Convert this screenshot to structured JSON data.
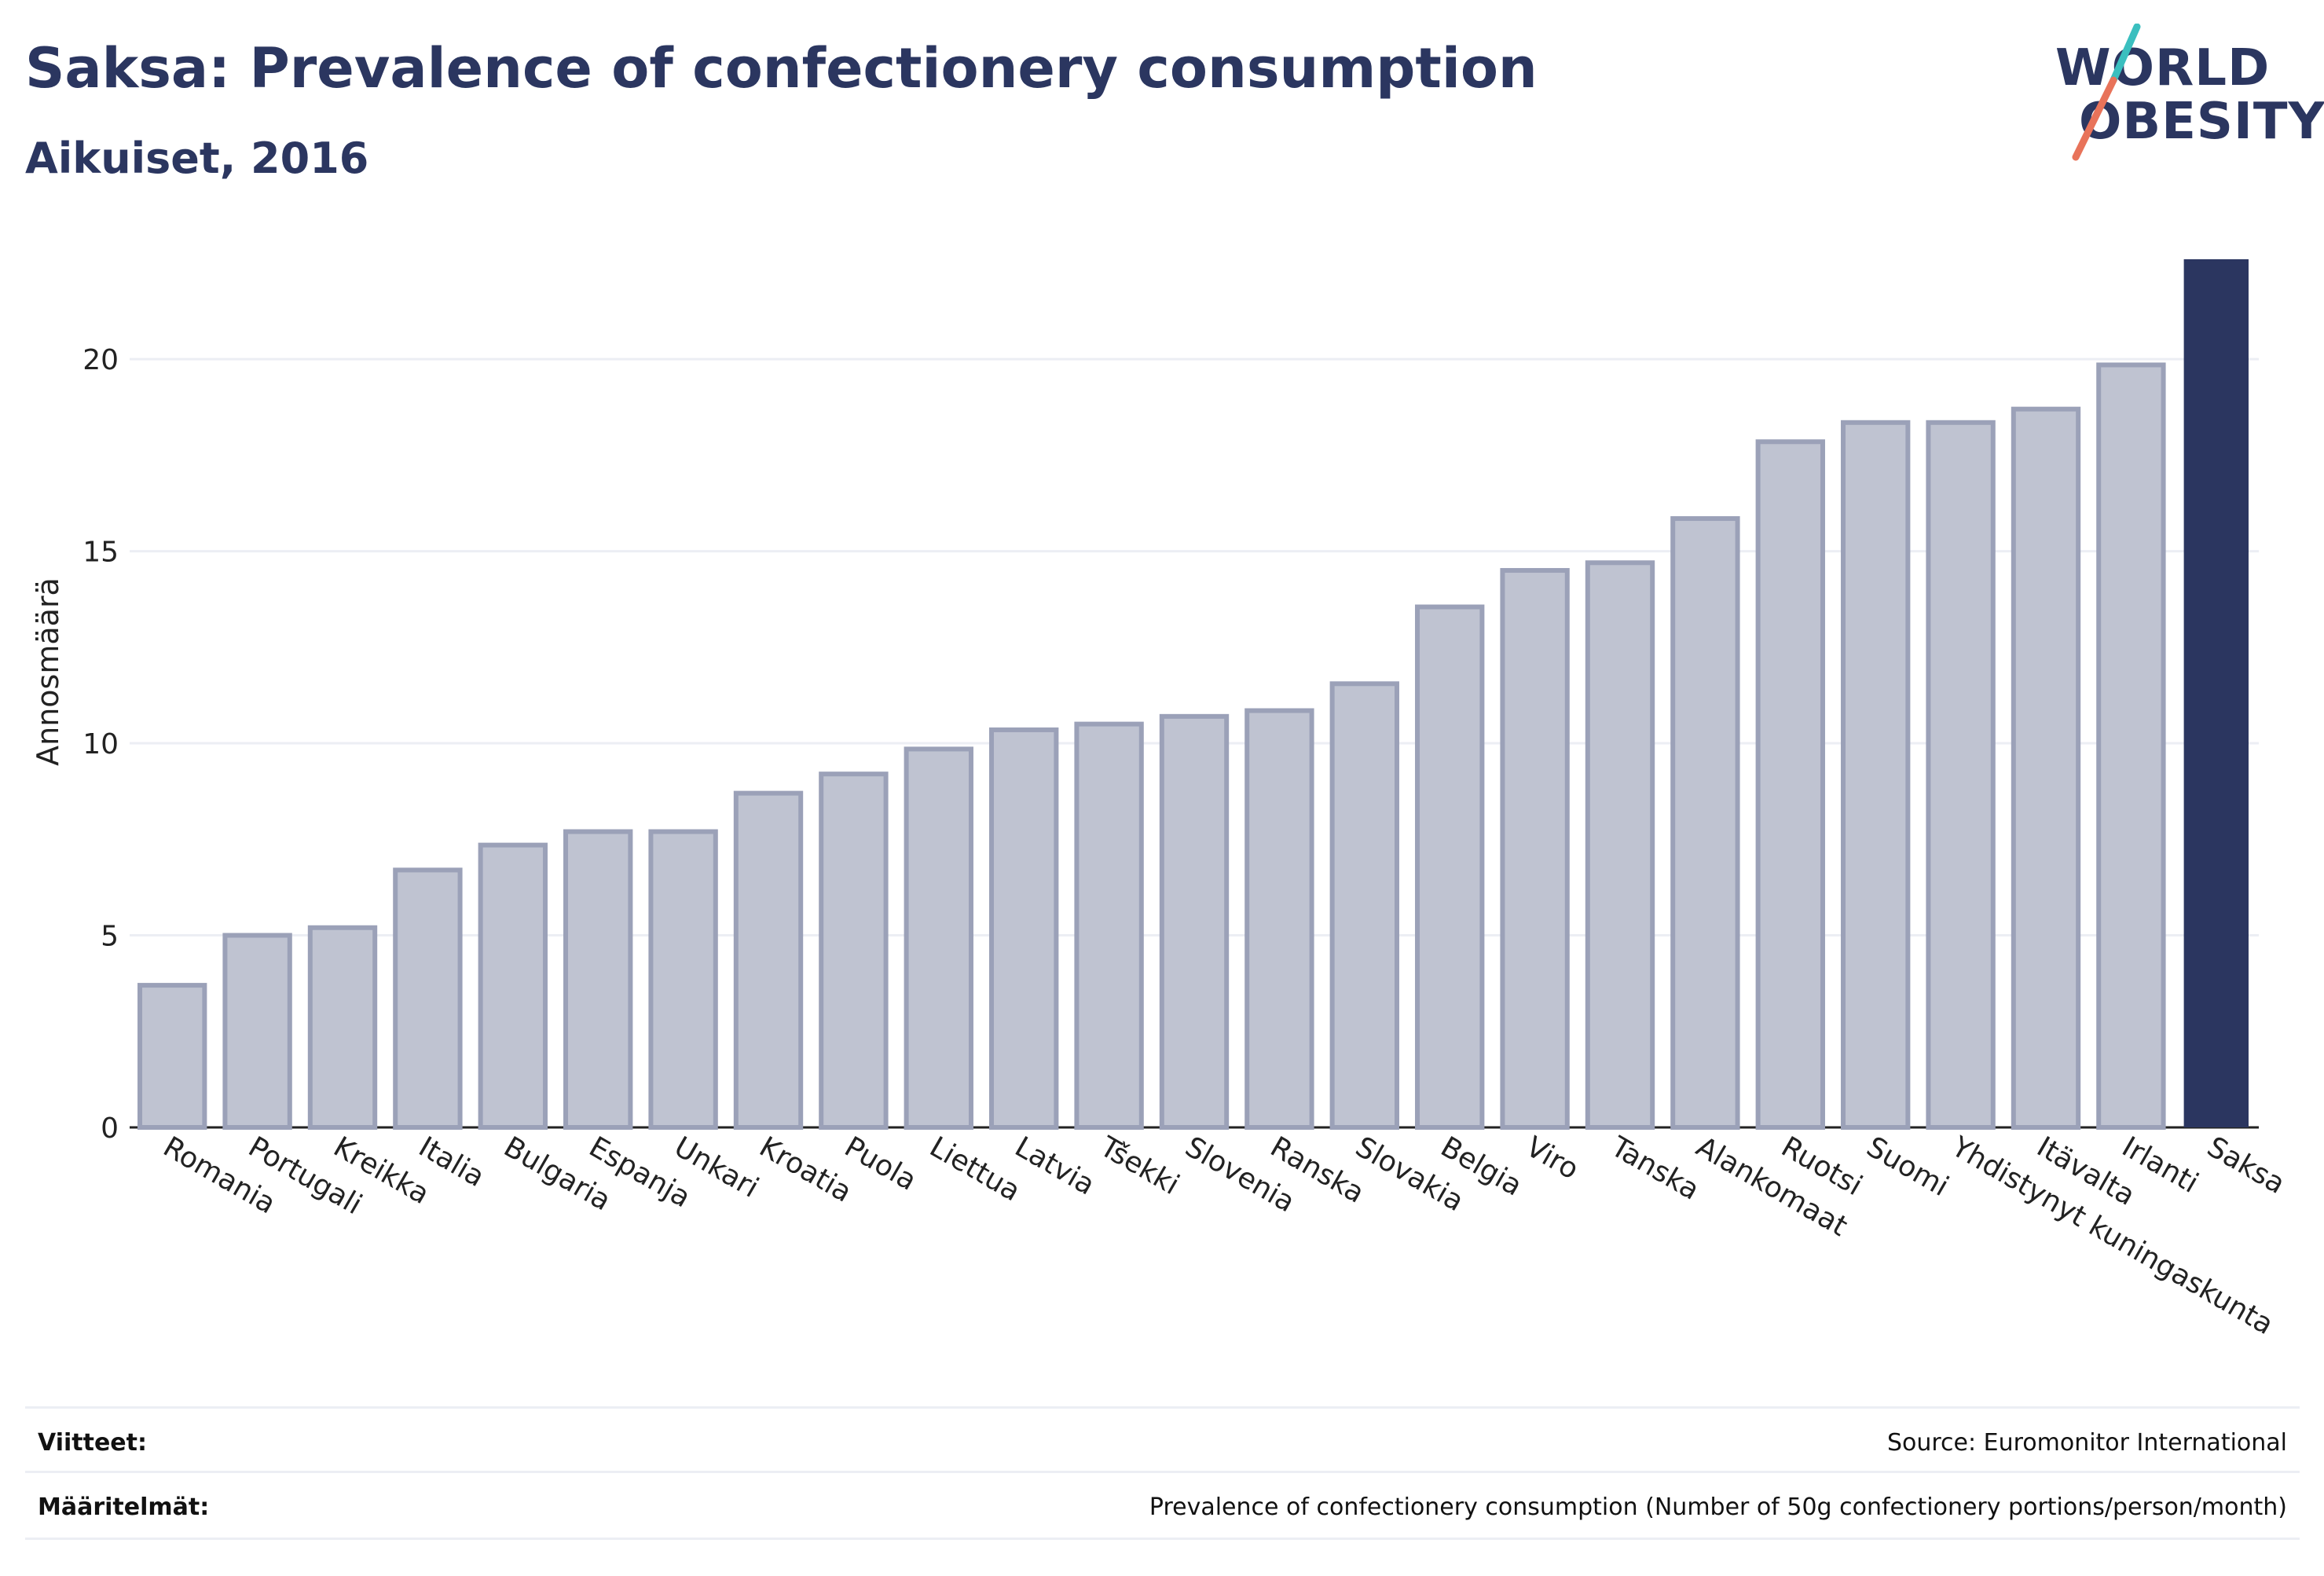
{
  "header": {
    "title": "Saksa: Prevalence of confectionery consumption",
    "subtitle": "Aikuiset, 2016"
  },
  "logo": {
    "line1": "WORLD",
    "line2": "OBESITY",
    "accent_teal": "#3bbfbf",
    "accent_coral": "#e8735a"
  },
  "colors": {
    "bar": "#bfc3d1",
    "bar_outline": "#9ba1b8",
    "highlight": "#2b3660",
    "grid": "#eceef4",
    "axis_text": "#222222"
  },
  "chart_data": {
    "type": "bar",
    "ylabel": "Annosmäärä",
    "ylim": [
      0,
      22.6
    ],
    "yticks": [
      0,
      5,
      10,
      15,
      20
    ],
    "grid": true,
    "highlight_category": "Saksa",
    "categories": [
      "Romania",
      "Portugali",
      "Kreikka",
      "Italia",
      "Bulgaria",
      "Espanja",
      "Unkari",
      "Kroatia",
      "Puola",
      "Liettua",
      "Latvia",
      "Tšekki",
      "Slovenia",
      "Ranska",
      "Slovakia",
      "Belgia",
      "Viro",
      "Tanska",
      "Alankomaat",
      "Ruotsi",
      "Suomi",
      "Yhdistynyt kuningaskunta",
      "Itävalta",
      "Irlanti",
      "Saksa"
    ],
    "values": [
      3.7,
      5.0,
      5.2,
      6.7,
      7.35,
      7.7,
      7.7,
      8.7,
      9.2,
      9.85,
      10.35,
      10.5,
      10.7,
      10.85,
      11.55,
      13.55,
      14.5,
      14.7,
      15.85,
      17.85,
      18.35,
      18.35,
      18.7,
      19.85,
      22.6
    ]
  },
  "footer": {
    "references_label": "Viitteet:",
    "references_value": "Source: Euromonitor International",
    "definitions_label": "Määritelmät:",
    "definitions_value": "Prevalence of confectionery consumption (Number of 50g confectionery portions/person/month)"
  }
}
